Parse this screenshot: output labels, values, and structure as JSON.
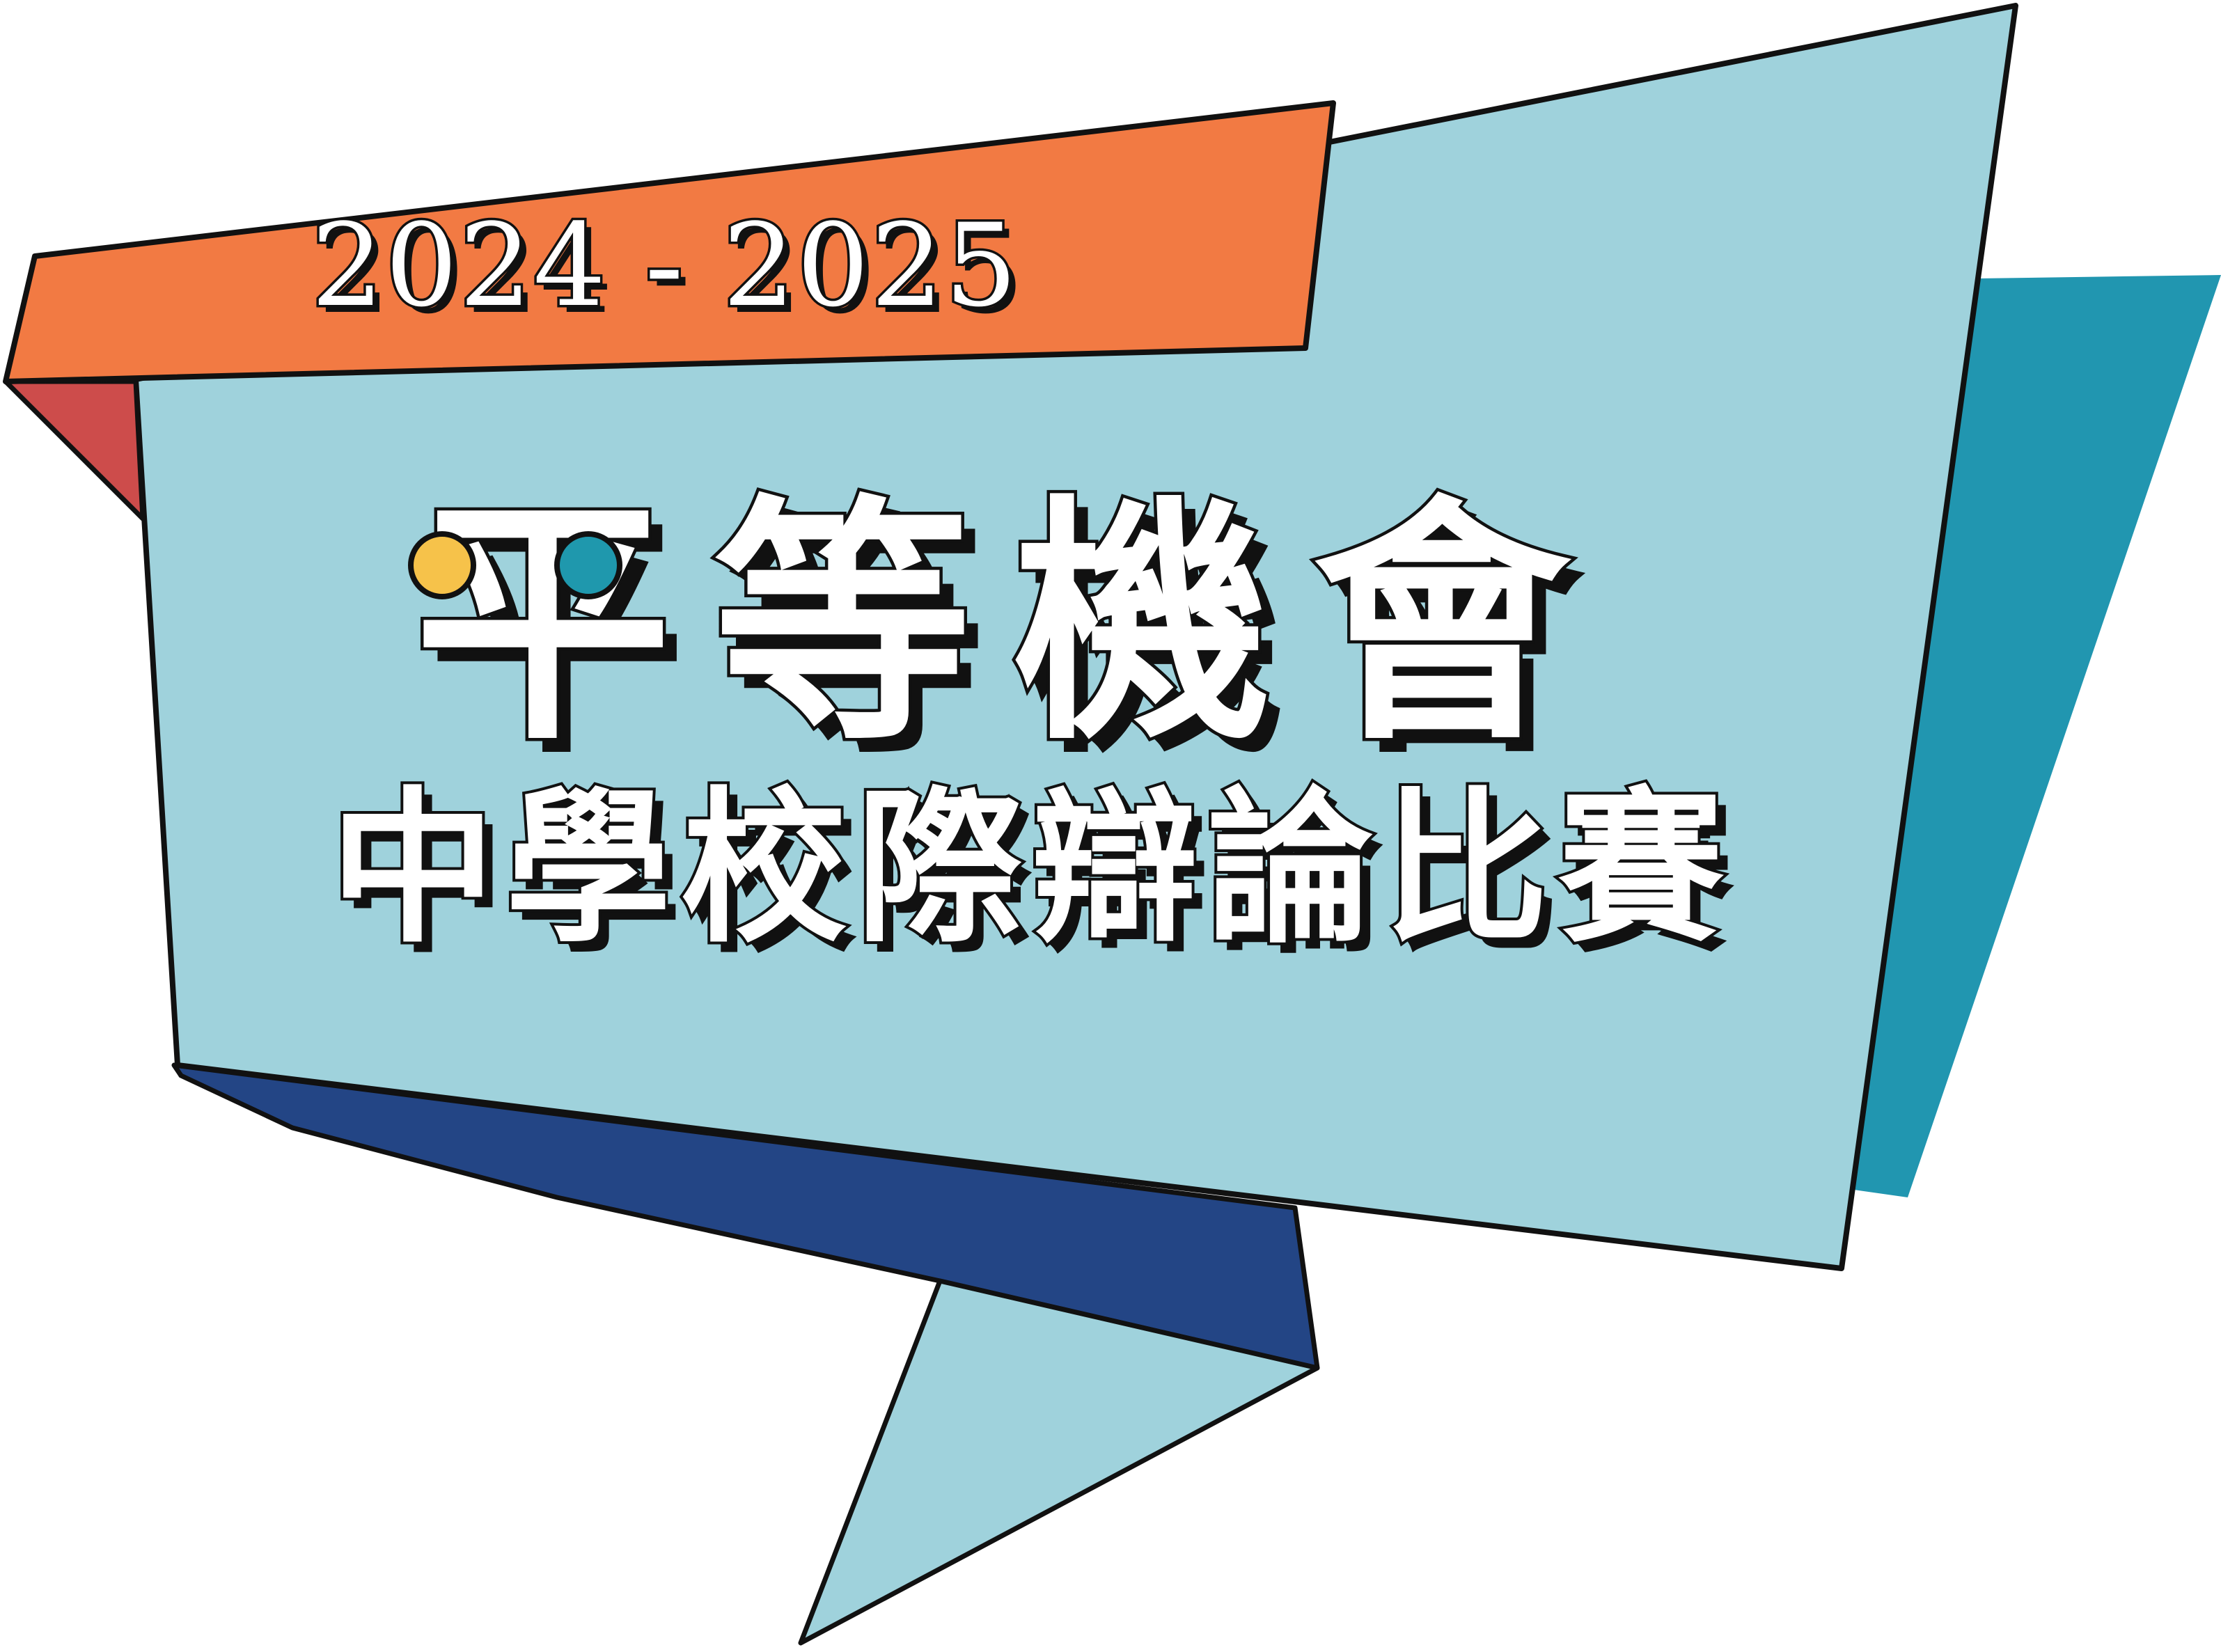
{
  "year_range": "2024 - 2025",
  "title": "平等機會",
  "subtitle": "中學校際辯論比賽",
  "colors": {
    "banner_main": "#9fd2dc",
    "ribbon_orange": "#f27a43",
    "fold_red": "#cd4c4b",
    "back_panel_teal": "#2196b0",
    "fold_navy": "#234585",
    "dot_yellow": "#f6c24a",
    "dot_teal": "#1f98ad",
    "outline": "#111111",
    "text_fill": "#ffffff"
  },
  "icons": [
    "yellow-dot-icon",
    "teal-dot-icon"
  ]
}
